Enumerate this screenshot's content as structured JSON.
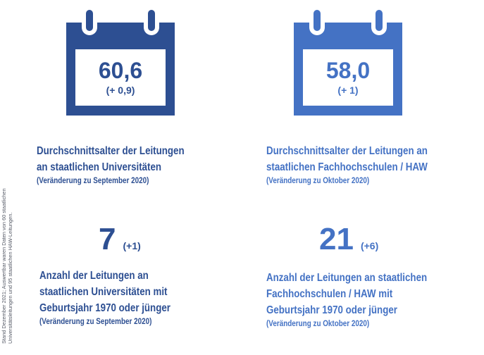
{
  "colors": {
    "dark_blue": "#2d4f92",
    "light_blue": "#4472c4"
  },
  "side_note": {
    "line1": "Stand Dezember 2021; Auswertbar waren Daten von 60 staatlichen",
    "line2": "Universitätsleitungen und 95 staatlichen HAW-Leitungen."
  },
  "universities": {
    "calendar": {
      "value": "60,6",
      "change": "(+ 0,9)"
    },
    "average_label": {
      "line1": "Durchschnittsalter der Leitungen",
      "line2": "an staatlichen Universitäten",
      "note": "(Veränderung zu September 2020)"
    },
    "count": {
      "value": "7",
      "change": "(+1)"
    },
    "count_label": {
      "line1": "Anzahl der Leitungen an",
      "line2": "staatlichen Universitäten mit",
      "line3": "Geburtsjahr 1970 oder jünger",
      "note": "(Veränderung zu September 2020)"
    }
  },
  "haw": {
    "calendar": {
      "value": "58,0",
      "change": "(+ 1)"
    },
    "average_label": {
      "line1": "Durchschnittsalter der Leitungen an",
      "line2": "staatlichen Fachhochschulen / HAW",
      "note": "(Veränderung zu Oktober 2020)"
    },
    "count": {
      "value": "21",
      "change": "(+6)"
    },
    "count_label": {
      "line1": "Anzahl der Leitungen an staatlichen",
      "line2": "Fachhochschulen / HAW mit",
      "line3": "Geburtsjahr 1970 oder jünger",
      "note": "(Veränderung zu Oktober 2020)"
    }
  }
}
